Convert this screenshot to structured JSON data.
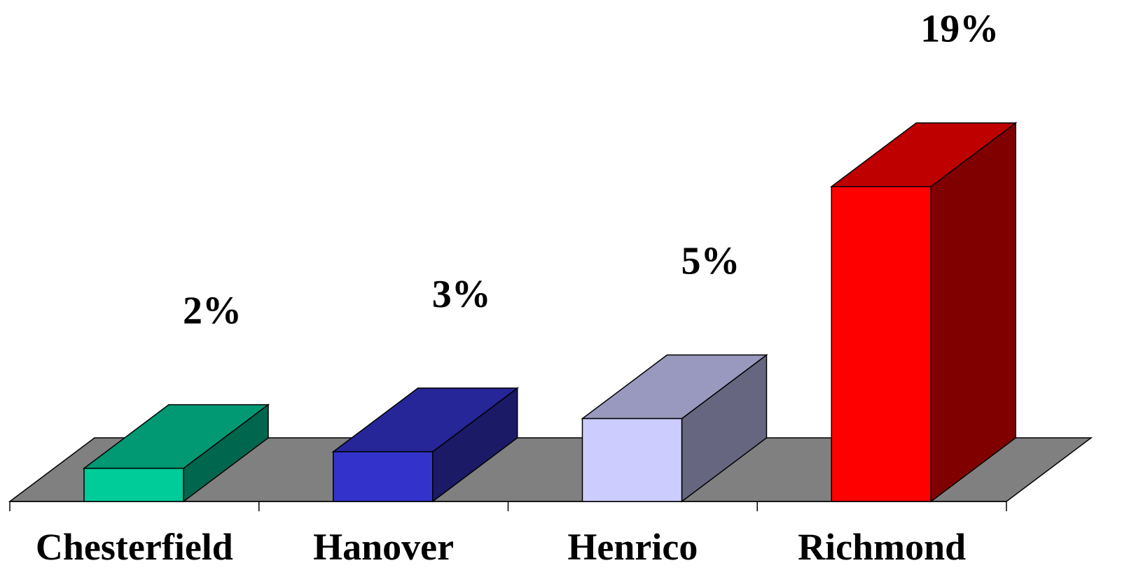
{
  "chart_data": {
    "type": "bar3d",
    "categories": [
      "Chesterfield",
      "Hanover",
      "Henrico",
      "Richmond"
    ],
    "values": [
      2,
      3,
      5,
      19
    ],
    "value_labels": [
      "2%",
      "3%",
      "5%",
      "19%"
    ],
    "colors": [
      "#00cc99",
      "#3333cc",
      "#ccccff",
      "#ff0000"
    ]
  }
}
